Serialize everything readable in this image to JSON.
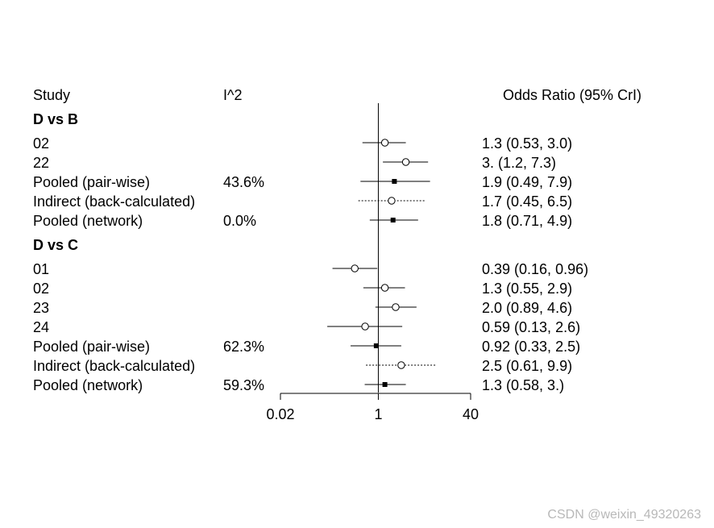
{
  "headers": {
    "study": "Study",
    "i2": "I^2",
    "or": "Odds Ratio (95% CrI)"
  },
  "watermark": "CSDN @weixin_49320263",
  "chart_data": {
    "type": "forest",
    "x_scale": "log",
    "xlim": [
      0.02,
      40
    ],
    "x_ticks": [
      {
        "value": 0.02,
        "label": "0.02"
      },
      {
        "value": 1,
        "label": "1"
      },
      {
        "value": 40,
        "label": "40"
      }
    ],
    "reference_value": 1,
    "groups": [
      {
        "title": "D vs B",
        "rows": [
          {
            "label": "02",
            "i2": "",
            "est": 1.3,
            "lo": 0.53,
            "hi": 3.0,
            "ci_text": "1.3 (0.53, 3.0)",
            "marker": "open-circle",
            "line": "solid"
          },
          {
            "label": "22",
            "i2": "",
            "est": 3.0,
            "lo": 1.2,
            "hi": 7.3,
            "ci_text": " 3. (1.2, 7.3)",
            "marker": "open-circle",
            "line": "solid"
          },
          {
            "label": "Pooled (pair-wise)",
            "i2": "43.6%",
            "est": 1.9,
            "lo": 0.49,
            "hi": 7.9,
            "ci_text": "1.9 (0.49, 7.9)",
            "marker": "filled-square",
            "line": "solid"
          },
          {
            "label": "Indirect (back-calculated)",
            "i2": "",
            "est": 1.7,
            "lo": 0.45,
            "hi": 6.5,
            "ci_text": "1.7 (0.45, 6.5)",
            "marker": "open-circle",
            "line": "dotted"
          },
          {
            "label": "Pooled (network)",
            "i2": "0.0%",
            "est": 1.8,
            "lo": 0.71,
            "hi": 4.9,
            "ci_text": "1.8 (0.71, 4.9)",
            "marker": "filled-square",
            "line": "solid"
          }
        ]
      },
      {
        "title": "D vs C",
        "rows": [
          {
            "label": "01",
            "i2": "",
            "est": 0.39,
            "lo": 0.16,
            "hi": 0.96,
            "ci_text": "0.39 (0.16, 0.96)",
            "marker": "open-circle",
            "line": "solid"
          },
          {
            "label": "02",
            "i2": "",
            "est": 1.3,
            "lo": 0.55,
            "hi": 2.9,
            "ci_text": "1.3 (0.55, 2.9)",
            "marker": "open-circle",
            "line": "solid"
          },
          {
            "label": "23",
            "i2": "",
            "est": 2.0,
            "lo": 0.89,
            "hi": 4.6,
            "ci_text": "2.0 (0.89, 4.6)",
            "marker": "open-circle",
            "line": "solid"
          },
          {
            "label": "24",
            "i2": "",
            "est": 0.59,
            "lo": 0.13,
            "hi": 2.6,
            "ci_text": "0.59 (0.13, 2.6)",
            "marker": "open-circle",
            "line": "solid"
          },
          {
            "label": "Pooled (pair-wise)",
            "i2": "62.3%",
            "est": 0.92,
            "lo": 0.33,
            "hi": 2.5,
            "ci_text": "0.92 (0.33, 2.5)",
            "marker": "filled-square",
            "line": "solid"
          },
          {
            "label": "Indirect (back-calculated)",
            "i2": "",
            "est": 2.5,
            "lo": 0.61,
            "hi": 9.9,
            "ci_text": "2.5 (0.61, 9.9)",
            "marker": "open-circle",
            "line": "dotted"
          },
          {
            "label": "Pooled (network)",
            "i2": "59.3%",
            "est": 1.3,
            "lo": 0.58,
            "hi": 3.0,
            "ci_text": "1.3 (0.58,  3.)",
            "marker": "filled-square",
            "line": "solid"
          }
        ]
      }
    ]
  }
}
